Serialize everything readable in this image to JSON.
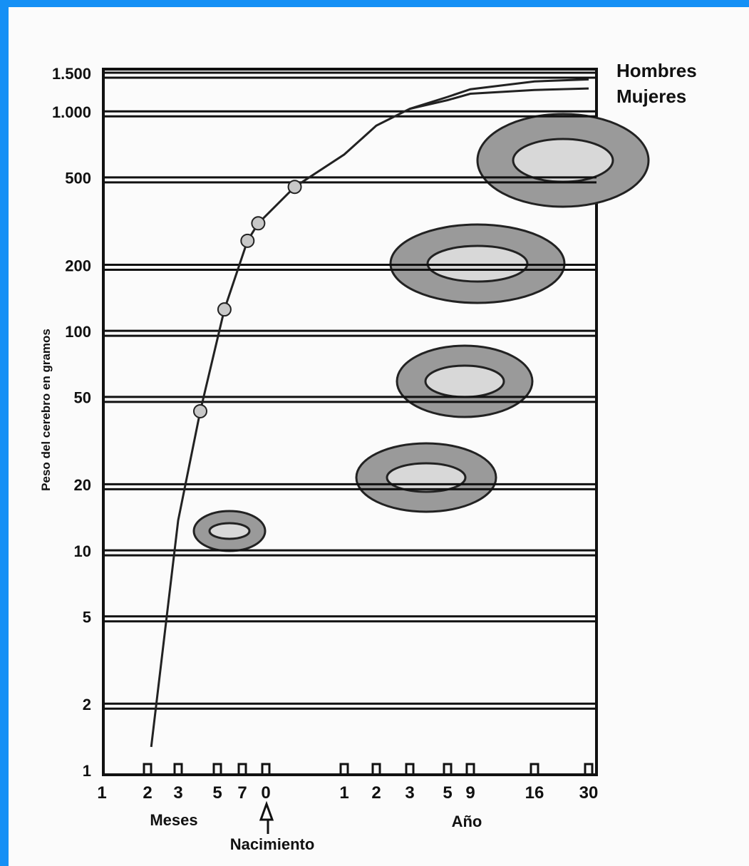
{
  "chart_data": {
    "type": "line",
    "y_label": "Peso del cerebro en gramos",
    "log_y": true,
    "ylim": [
      1,
      1500
    ],
    "yticks": [
      1,
      2,
      5,
      10,
      20,
      50,
      100,
      200,
      500,
      {
        "value": 1000,
        "label": "1.000"
      },
      {
        "value": 1500,
        "label": "1.500"
      }
    ],
    "xlim": [
      1,
      369
    ],
    "xticks": [
      {
        "value": 1,
        "label": "1"
      },
      {
        "value": 2,
        "label": "2"
      },
      {
        "value": 3,
        "label": "3"
      },
      {
        "value": 5,
        "label": "5"
      },
      {
        "value": 7,
        "label": "7"
      },
      {
        "value": 9,
        "label": "0"
      },
      {
        "value": 21,
        "label": "1"
      },
      {
        "value": 33,
        "label": "2"
      },
      {
        "value": 45,
        "label": "3"
      },
      {
        "value": 69,
        "label": "5"
      },
      {
        "value": 117,
        "label": "9"
      },
      {
        "value": 201,
        "label": "16"
      },
      {
        "value": 369,
        "label": "30"
      }
    ],
    "annotations": {
      "months": "Meses",
      "years": "Año",
      "birth": "Nacimiento"
    },
    "series": [
      {
        "name": "Hombres",
        "color": "#222222",
        "x": [
          2.1,
          3,
          4,
          5.5,
          7.4,
          8.3,
          12.3,
          21,
          33,
          45,
          69,
          117,
          201,
          369
        ],
        "values": [
          1.3,
          14,
          44,
          128,
          263,
          316,
          463,
          650,
          880,
          1050,
          1190,
          1290,
          1400,
          1430
        ]
      },
      {
        "name": "Mujeres",
        "color": "#222222",
        "x": [
          45,
          69,
          117,
          201,
          369
        ],
        "values": [
          1050,
          1150,
          1230,
          1280,
          1300
        ]
      }
    ],
    "points": {
      "x": [
        4,
        5.5,
        7.4,
        8.3,
        12.3
      ],
      "values": [
        44,
        128,
        263,
        316,
        463
      ]
    }
  }
}
